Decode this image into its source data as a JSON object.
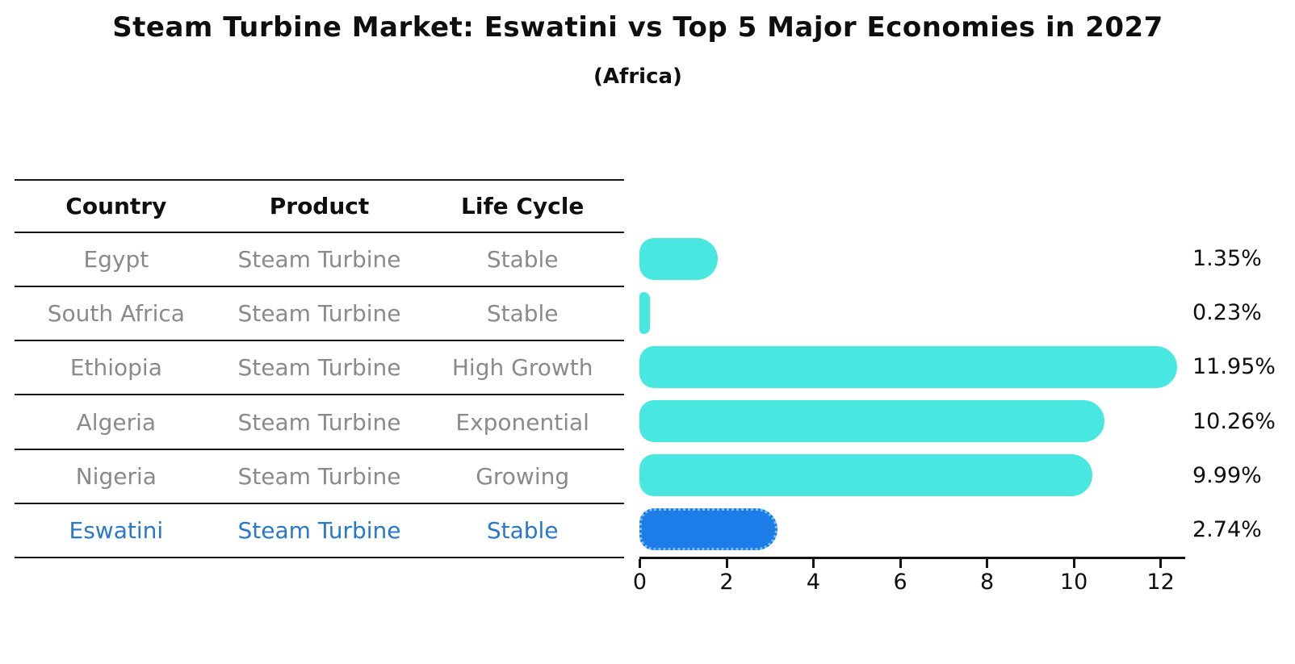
{
  "title": "Steam Turbine Market: Eswatini vs Top 5 Major Economies in 2027",
  "subtitle": "(Africa)",
  "table": {
    "headers": [
      "Country",
      "Product",
      "Life Cycle"
    ],
    "rows": [
      {
        "cells": [
          "Egypt",
          "Steam Turbine",
          "Stable"
        ],
        "highlight": false
      },
      {
        "cells": [
          "South Africa",
          "Steam Turbine",
          "Stable"
        ],
        "highlight": false
      },
      {
        "cells": [
          "Ethiopia",
          "Steam Turbine",
          "High Growth"
        ],
        "highlight": false
      },
      {
        "cells": [
          "Algeria",
          "Steam Turbine",
          "Exponential"
        ],
        "highlight": false
      },
      {
        "cells": [
          "Nigeria",
          "Steam Turbine",
          "Growing"
        ],
        "highlight": false
      },
      {
        "cells": [
          "Eswatini",
          "Steam Turbine",
          "Stable"
        ],
        "highlight": true
      }
    ]
  },
  "chart_data": {
    "type": "bar",
    "orientation": "horizontal",
    "categories": [
      "Egypt",
      "South Africa",
      "Ethiopia",
      "Algeria",
      "Nigeria",
      "Eswatini"
    ],
    "values": [
      1.35,
      0.23,
      11.95,
      10.26,
      9.99,
      2.74
    ],
    "value_labels": [
      "1.35%",
      "0.23%",
      "11.95%",
      "10.26%",
      "9.99%",
      "2.74%"
    ],
    "highlight_index": 5,
    "x_ticks": [
      0,
      2,
      4,
      6,
      8,
      10,
      12
    ],
    "xlim": [
      0,
      12.5
    ],
    "grid": false,
    "legend": false,
    "value_labels_position": "right-outside"
  },
  "colors": {
    "bar_default": "#48E8E1",
    "bar_highlight": "#1C7CE8",
    "bar_highlight_border": "#7EC0F8",
    "highlight_text": "#2878CC",
    "table_text": "#8a8a8a",
    "header_text": "#0e0e0e",
    "line": "#141414"
  }
}
